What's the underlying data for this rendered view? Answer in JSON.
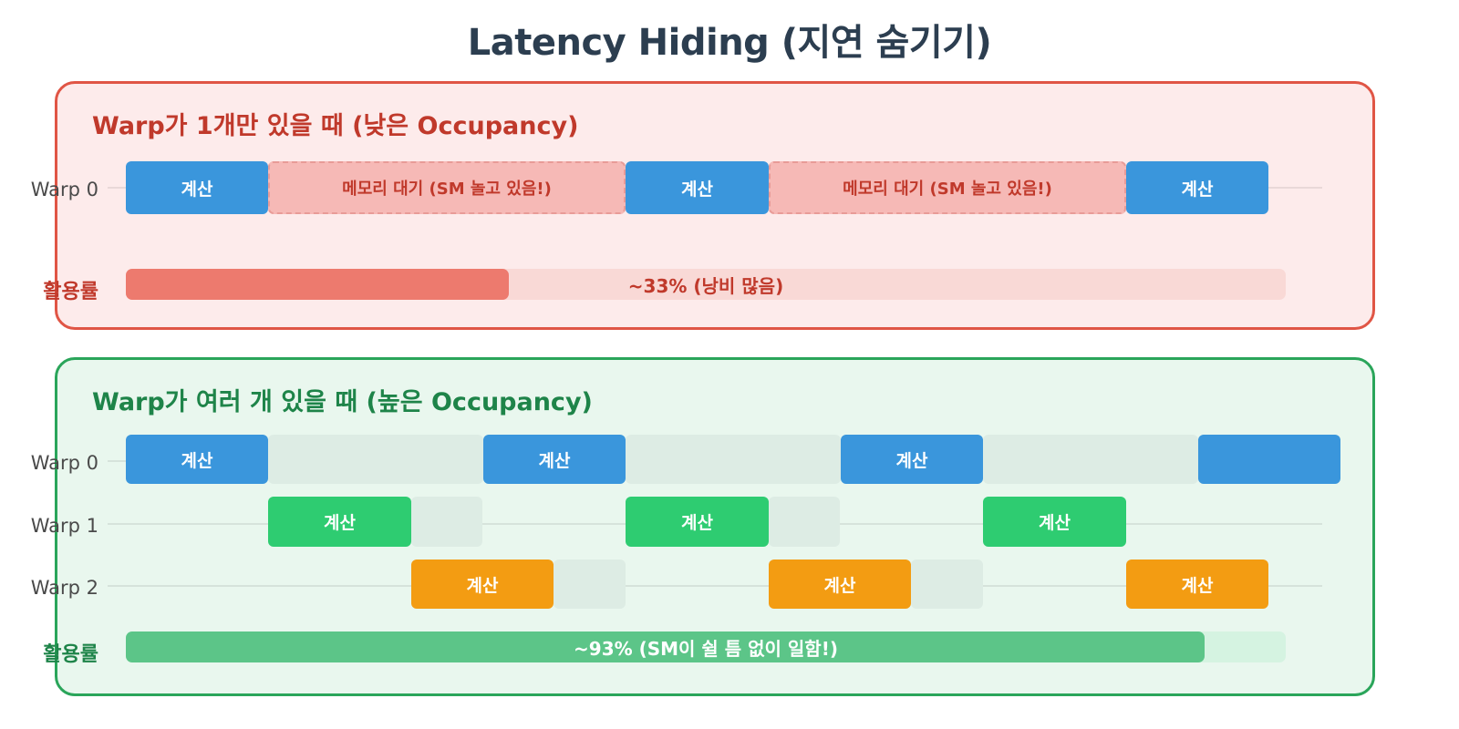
{
  "title": "Latency Hiding (지연 숨기기)",
  "colors": {
    "compute_warp0": "#3a96dc",
    "compute_warp1": "#2ecc71",
    "compute_warp2": "#f39c12",
    "memory_wait": "#f6b9b6",
    "low_panel_border": "#e05545",
    "high_panel_border": "#2aa55a"
  },
  "low_occupancy": {
    "title": "Warp가 1개만 있을 때 (낮은 Occupancy)",
    "warp0_label": "Warp 0",
    "blocks": [
      {
        "type": "compute",
        "text": "계산"
      },
      {
        "type": "wait",
        "text": "메모리 대기 (SM 놀고 있음!)"
      },
      {
        "type": "compute",
        "text": "계산"
      },
      {
        "type": "wait",
        "text": "메모리 대기 (SM 놀고 있음!)"
      },
      {
        "type": "compute",
        "text": "계산"
      }
    ],
    "util_label": "활용률",
    "util_text": "~33% (낭비 많음)",
    "util_value": 0.33
  },
  "high_occupancy": {
    "title": "Warp가 여러 개 있을 때 (높은 Occupancy)",
    "warp_labels": [
      "Warp 0",
      "Warp 1",
      "Warp 2"
    ],
    "compute_text": "계산",
    "util_label": "활용률",
    "util_text": "~93% (SM이 쉴 틈 없이 일함!)",
    "util_value": 0.93
  }
}
